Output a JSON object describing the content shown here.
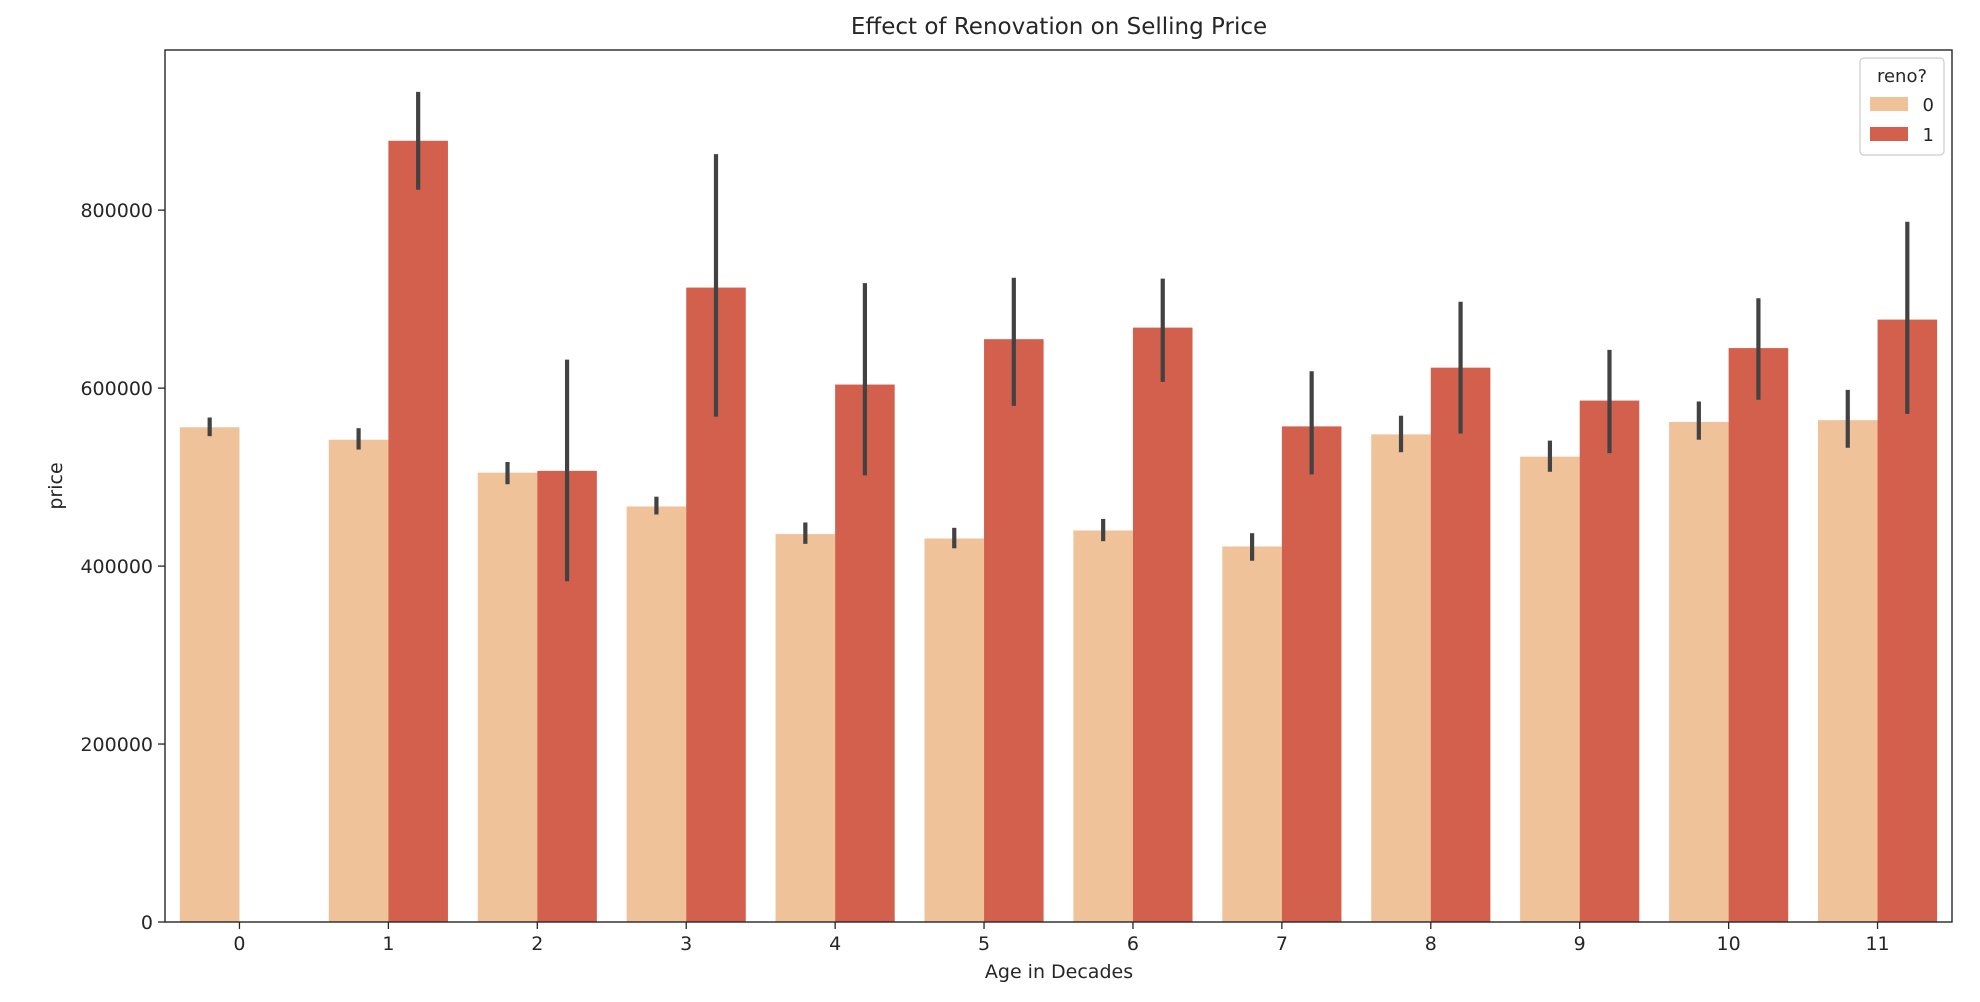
{
  "chart_data": {
    "type": "bar",
    "title": "Effect of Renovation on Selling Price",
    "xlabel": "Age in Decades",
    "ylabel": "price",
    "categories": [
      "0",
      "1",
      "2",
      "3",
      "4",
      "5",
      "6",
      "7",
      "8",
      "9",
      "10",
      "11"
    ],
    "ylim": [
      0,
      980000
    ],
    "yticks": [
      0,
      200000,
      400000,
      600000,
      800000
    ],
    "ytick_labels": [
      "0",
      "200000",
      "400000",
      "600000",
      "800000"
    ],
    "grid": false,
    "legend": {
      "title": "reno?",
      "placement": "top-right"
    },
    "series": [
      {
        "name": "0",
        "color": "#f0c29a",
        "values": [
          556000,
          542000,
          505000,
          467000,
          436000,
          431000,
          440000,
          422000,
          548000,
          523000,
          562000,
          564000
        ],
        "err_low": [
          546000,
          531000,
          492000,
          458000,
          425000,
          420000,
          428000,
          406000,
          528000,
          506000,
          542000,
          533000
        ],
        "err_high": [
          567000,
          555000,
          517000,
          478000,
          449000,
          443000,
          453000,
          437000,
          569000,
          541000,
          585000,
          598000
        ]
      },
      {
        "name": "1",
        "color": "#d2604c",
        "values": [
          null,
          878000,
          507000,
          713000,
          604000,
          655000,
          668000,
          557000,
          623000,
          586000,
          645000,
          677000
        ],
        "err_low": [
          null,
          823000,
          383000,
          568000,
          502000,
          580000,
          607000,
          503000,
          549000,
          527000,
          587000,
          571000
        ],
        "err_high": [
          null,
          933000,
          632000,
          863000,
          718000,
          724000,
          723000,
          619000,
          697000,
          643000,
          701000,
          787000
        ]
      }
    ]
  }
}
